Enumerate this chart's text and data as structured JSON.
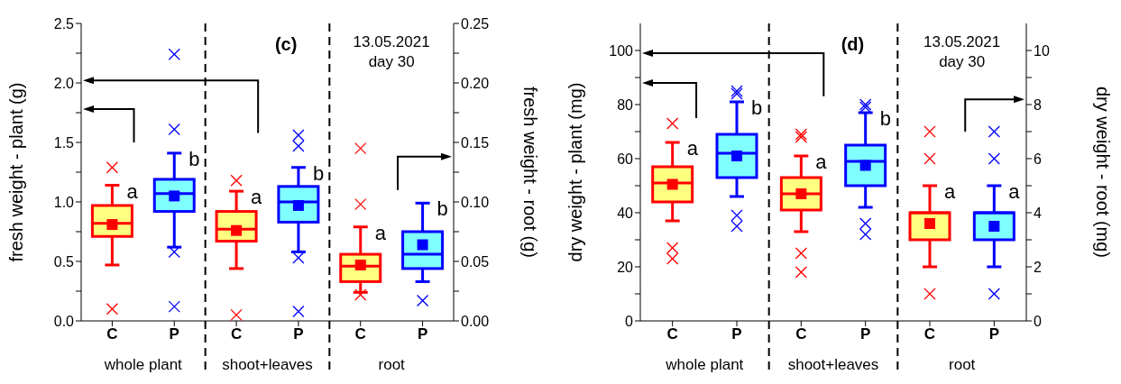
{
  "chart_data": [
    {
      "type": "box",
      "categories": [
        "C",
        "P",
        "C",
        "P",
        "C",
        "P"
      ],
      "ylabel": "fresh weight - plant (g)",
      "y2label": "fresh weight - root (g)",
      "ylim": [
        0,
        2.5
      ],
      "yticks": [
        {
          "value": 0,
          "label": "0.0"
        },
        {
          "value": 0.25,
          "label": null
        },
        {
          "value": 0.5,
          "label": "0.5"
        },
        {
          "value": 0.75,
          "label": null
        },
        {
          "value": 1,
          "label": "1.0"
        },
        {
          "value": 1.25,
          "label": null
        },
        {
          "value": 1.5,
          "label": "1.5"
        },
        {
          "value": 1.75,
          "label": null
        },
        {
          "value": 2,
          "label": "2.0"
        },
        {
          "value": 2.25,
          "label": null
        },
        {
          "value": 2.5,
          "label": "2.5"
        }
      ],
      "y2lim": [
        0,
        0.25
      ],
      "y2ticks": [
        {
          "value": 0,
          "label": "0.00"
        },
        {
          "value": 0.025,
          "label": null
        },
        {
          "value": 0.05,
          "label": "0.05"
        },
        {
          "value": 0.075,
          "label": null
        },
        {
          "value": 0.1,
          "label": "0.10"
        },
        {
          "value": 0.125,
          "label": null
        },
        {
          "value": 0.15,
          "label": "0.15"
        },
        {
          "value": 0.175,
          "label": null
        },
        {
          "value": 0.2,
          "label": "0.20"
        },
        {
          "value": 0.225,
          "label": null
        },
        {
          "value": 0.25,
          "label": "0.25"
        }
      ],
      "marker": "cross",
      "series": [
        {
          "color": "#ff0000",
          "axis": "y",
          "boxes": [
            {
              "low": 0.47,
              "q1": 0.71,
              "median": 0.82,
              "q3": 0.97,
              "high": 1.14,
              "mean": 0.81,
              "outliers": [
                0.1,
                1.29
              ]
            },
            null,
            {
              "low": 0.44,
              "q1": 0.67,
              "median": 0.77,
              "q3": 0.92,
              "high": 1.09,
              "mean": 0.76,
              "outliers": [
                0.05,
                1.18
              ]
            },
            null,
            null,
            null
          ]
        },
        {
          "color": "#0000ff",
          "axis": "y",
          "boxes": [
            null,
            {
              "low": 0.62,
              "q1": 0.92,
              "median": 1.07,
              "q3": 1.19,
              "high": 1.41,
              "mean": 1.05,
              "outliers": [
                0.12,
                0.58,
                1.61,
                2.24
              ]
            },
            null,
            {
              "low": 0.58,
              "q1": 0.83,
              "median": 1.0,
              "q3": 1.13,
              "high": 1.29,
              "mean": 0.97,
              "outliers": [
                0.08,
                0.53,
                1.47,
                1.56
              ]
            },
            null,
            null
          ]
        },
        {
          "color": "#ff0000",
          "axis": "y2",
          "boxes": [
            null,
            null,
            null,
            null,
            {
              "low": 0.024,
              "q1": 0.033,
              "median": 0.046,
              "q3": 0.056,
              "high": 0.079,
              "mean": 0.047,
              "outliers": [
                0.022,
                0.098,
                0.145
              ]
            },
            null
          ]
        },
        {
          "color": "#0000ff",
          "axis": "y2",
          "boxes": [
            null,
            null,
            null,
            null,
            null,
            {
              "low": 0.033,
              "q1": 0.044,
              "median": 0.056,
              "q3": 0.075,
              "high": 0.099,
              "mean": 0.064,
              "outliers": [
                0.017
              ]
            }
          ]
        }
      ],
      "annotations": [
        "(c)",
        "13.05.2021\nday 30",
        "whole plant",
        "shoot+leaves",
        "root",
        "a",
        "b",
        "a",
        "b",
        "a",
        "b"
      ]
    },
    {
      "type": "box",
      "categories": [
        "C",
        "P",
        "C",
        "P",
        "C",
        "P"
      ],
      "ylabel": "dry weight - plant (mg)",
      "y2label": "dry weight - root (mg)",
      "ylim": [
        0,
        110
      ],
      "yticks": [
        0,
        {
          "value": 10,
          "label": null
        },
        20,
        {
          "value": 30,
          "label": null
        },
        40,
        {
          "value": 50,
          "label": null
        },
        60,
        {
          "value": 70,
          "label": null
        },
        80,
        {
          "value": 90,
          "label": null
        },
        100
      ],
      "y2lim": [
        0,
        11
      ],
      "y2ticks": [
        0,
        {
          "value": 1,
          "label": null
        },
        2,
        {
          "value": 3,
          "label": null
        },
        4,
        {
          "value": 5,
          "label": null
        },
        6,
        {
          "value": 7,
          "label": null
        },
        8,
        {
          "value": 9,
          "label": null
        },
        10
      ],
      "marker": "cross",
      "series": [
        {
          "color": "#ff0000",
          "axis": "y",
          "boxes": [
            {
              "low": 37,
              "q1": 44,
              "median": 51,
              "q3": 57,
              "high": 66,
              "mean": 50.5,
              "outliers": [
                23,
                27,
                73
              ]
            },
            null,
            {
              "low": 33,
              "q1": 41,
              "median": 47,
              "q3": 53,
              "high": 61,
              "mean": 47,
              "outliers": [
                18,
                25,
                68,
                69
              ]
            },
            null,
            null,
            null
          ]
        },
        {
          "color": "#0000ff",
          "axis": "y",
          "boxes": [
            null,
            {
              "low": 46,
              "q1": 53,
              "median": 62,
              "q3": 69,
              "high": 81,
              "mean": 61,
              "outliers": [
                35,
                39,
                84,
                85
              ]
            },
            null,
            {
              "low": 42,
              "q1": 50,
              "median": 59,
              "q3": 65,
              "high": 77,
              "mean": 57.5,
              "outliers": [
                32,
                36,
                79,
                80
              ]
            },
            null,
            null
          ]
        },
        {
          "color": "#ff0000",
          "axis": "y2",
          "boxes": [
            null,
            null,
            null,
            null,
            {
              "low": 2,
              "q1": 3,
              "median": 4,
              "q3": 4,
              "high": 5,
              "mean": 3.6,
              "outliers": [
                1,
                6,
                7
              ]
            },
            null
          ]
        },
        {
          "color": "#0000ff",
          "axis": "y2",
          "boxes": [
            null,
            null,
            null,
            null,
            null,
            {
              "low": 2,
              "q1": 3,
              "median": 4,
              "q3": 4,
              "high": 5,
              "mean": 3.5,
              "outliers": [
                1,
                6,
                7
              ]
            }
          ]
        }
      ],
      "annotations": [
        "(d)",
        "13.05.2021\nday 30",
        "whole plant",
        "shoot+leaves",
        "root",
        "a",
        "b",
        "a",
        "b",
        "a",
        "a"
      ]
    }
  ]
}
